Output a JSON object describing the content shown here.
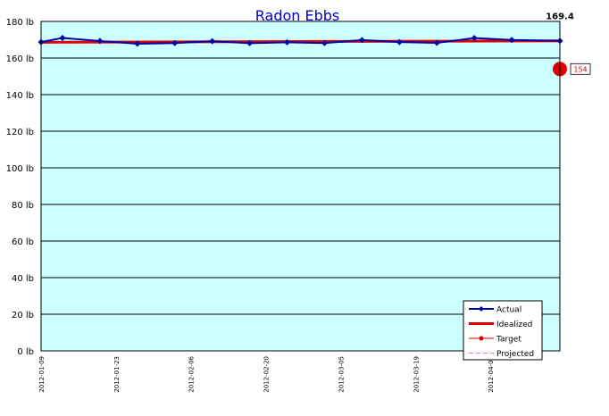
{
  "chart_data": {
    "type": "line",
    "title": "Radon Ebbs",
    "xlabel": "",
    "ylabel": "",
    "ylim": [
      0,
      180
    ],
    "y_ticks": [
      "0 lb",
      "20 lb",
      "40 lb",
      "60 lb",
      "80 lb",
      "100 lb",
      "120 lb",
      "140 lb",
      "160 lb",
      "180 lb"
    ],
    "y_tick_values": [
      0,
      20,
      40,
      60,
      80,
      100,
      120,
      140,
      160,
      180
    ],
    "x_range": [
      "2012-01-09",
      "2012-04-15"
    ],
    "x_ticks": [
      "2012-01-09",
      "2012-01-23",
      "2012-02-06",
      "2012-02-20",
      "2012-03-05",
      "2012-03-19",
      "2012-04-02"
    ],
    "grid": true,
    "legend_position": "bottom-right",
    "plot_background": "#ccffff",
    "series": [
      {
        "name": "Actual",
        "color": "#0000aa",
        "x": [
          "2012-01-09",
          "2012-01-13",
          "2012-01-20",
          "2012-01-27",
          "2012-02-03",
          "2012-02-10",
          "2012-02-17",
          "2012-02-24",
          "2012-03-02",
          "2012-03-09",
          "2012-03-16",
          "2012-03-23",
          "2012-03-30",
          "2012-04-06",
          "2012-04-15"
        ],
        "values": [
          168.7,
          171.0,
          169.3,
          167.8,
          168.2,
          169.2,
          168.1,
          168.6,
          168.2,
          169.8,
          168.7,
          168.3,
          170.9,
          169.9,
          169.4
        ]
      },
      {
        "name": "Idealized",
        "color": "#dd0000",
        "x": [
          "2012-01-09",
          "2012-04-15"
        ],
        "values": [
          168.6,
          169.4
        ]
      },
      {
        "name": "Target",
        "color": "#dd0000",
        "x": [
          "2012-04-15"
        ],
        "values": [
          154
        ]
      },
      {
        "name": "Projected",
        "color": "#ff66cc",
        "x": [],
        "values": []
      }
    ],
    "annotations": {
      "last_value": "169.4",
      "target_label": "154"
    }
  }
}
